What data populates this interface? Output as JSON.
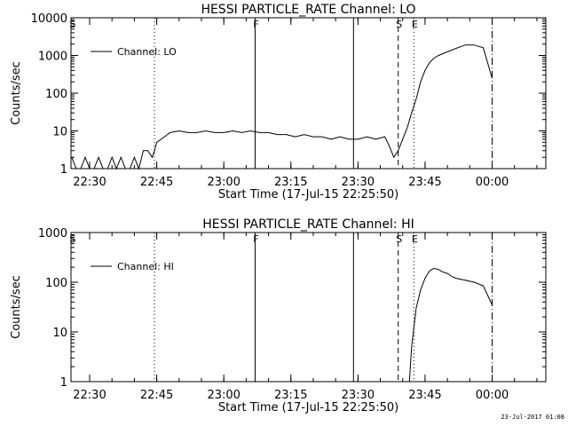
{
  "footer": {
    "timestamp": "23-Jul-2017 01:08"
  },
  "chart_data": [
    {
      "type": "line",
      "title": "HESSI PARTICLE_RATE Channel: LO",
      "xlabel": "Start Time (17-Jul-15 22:25:50)",
      "ylabel": "Counts/sec",
      "yscale": "log",
      "ylim": [
        1,
        10000
      ],
      "yticks": [
        "1",
        "10",
        "100",
        "1000",
        "10000"
      ],
      "xlim": [
        "22:25:50",
        "00:12"
      ],
      "xticks": [
        "22:30",
        "22:45",
        "23:00",
        "23:15",
        "23:30",
        "23:45",
        "00:00"
      ],
      "legend_position": "top-left",
      "series": [
        {
          "name": "Channel: LO",
          "x": [
            "22:26",
            "22:27",
            "22:28",
            "22:29",
            "22:30",
            "22:31",
            "22:32",
            "22:33",
            "22:34",
            "22:35",
            "22:36",
            "22:37",
            "22:38",
            "22:39",
            "22:40",
            "22:41",
            "22:42",
            "22:43",
            "22:44",
            "22:44:30",
            "22:45",
            "22:46",
            "22:48",
            "22:50",
            "22:52",
            "22:54",
            "22:56",
            "22:58",
            "23:00",
            "23:02",
            "23:04",
            "23:06",
            "23:08",
            "23:10",
            "23:12",
            "23:14",
            "23:16",
            "23:18",
            "23:20",
            "23:22",
            "23:24",
            "23:26",
            "23:28",
            "23:30",
            "23:32",
            "23:34",
            "23:36",
            "23:37",
            "23:38",
            "23:39",
            "23:40",
            "23:41",
            "23:42",
            "23:43",
            "23:44",
            "23:45",
            "23:46",
            "23:47",
            "23:48",
            "23:50",
            "23:52",
            "23:54",
            "23:56",
            "23:58",
            "00:00"
          ],
          "y": [
            2,
            1,
            1,
            2,
            1,
            1,
            2,
            1,
            1,
            2,
            1,
            2,
            1,
            1,
            2,
            1,
            3,
            3,
            2,
            3,
            5,
            6,
            9,
            10,
            9,
            9,
            10,
            9,
            9,
            10,
            9,
            10,
            9,
            9,
            8,
            8,
            7,
            8,
            7,
            7,
            6,
            7,
            6,
            6,
            7,
            6,
            7,
            4,
            2,
            3,
            6,
            12,
            30,
            70,
            200,
            400,
            650,
            850,
            1000,
            1250,
            1550,
            1900,
            1900,
            1600,
            250
          ]
        }
      ],
      "annotations": [
        {
          "label": "S",
          "x": "22:26",
          "style": "none"
        },
        {
          "label": "",
          "x": "22:44:30",
          "style": "dotted"
        },
        {
          "label": "F",
          "x": "23:07",
          "style": "solid"
        },
        {
          "label": "",
          "x": "23:29",
          "style": "solid"
        },
        {
          "label": "S",
          "x": "23:39",
          "style": "dashed"
        },
        {
          "label": "E",
          "x": "23:42:30",
          "style": "dotted"
        },
        {
          "label": "",
          "x": "00:00",
          "style": "dash-dot"
        }
      ]
    },
    {
      "type": "line",
      "title": "HESSI PARTICLE_RATE Channel: HI",
      "xlabel": "Start Time (17-Jul-15 22:25:50)",
      "ylabel": "Counts/sec",
      "yscale": "log",
      "ylim": [
        1,
        1000
      ],
      "yticks": [
        "1",
        "10",
        "100",
        "1000"
      ],
      "xlim": [
        "22:25:50",
        "00:12"
      ],
      "xticks": [
        "22:30",
        "22:45",
        "23:00",
        "23:15",
        "23:30",
        "23:45",
        "00:00"
      ],
      "legend_position": "top-left",
      "series": [
        {
          "name": "Channel: HI",
          "x": [
            "23:41:30",
            "23:42",
            "23:43",
            "23:44",
            "23:45",
            "23:46",
            "23:47",
            "23:48",
            "23:49",
            "23:50",
            "23:51",
            "23:52",
            "23:54",
            "23:56",
            "23:58",
            "00:00"
          ],
          "y": [
            1,
            5,
            30,
            70,
            120,
            170,
            190,
            180,
            160,
            150,
            130,
            120,
            110,
            100,
            85,
            35
          ]
        }
      ],
      "annotations": [
        {
          "label": "S",
          "x": "22:26",
          "style": "none"
        },
        {
          "label": "",
          "x": "22:44:30",
          "style": "dotted"
        },
        {
          "label": "F",
          "x": "23:07",
          "style": "solid"
        },
        {
          "label": "",
          "x": "23:29",
          "style": "solid"
        },
        {
          "label": "S",
          "x": "23:39",
          "style": "dashed"
        },
        {
          "label": "E",
          "x": "23:42:30",
          "style": "dotted"
        },
        {
          "label": "",
          "x": "00:00",
          "style": "dash-dot"
        }
      ]
    }
  ]
}
